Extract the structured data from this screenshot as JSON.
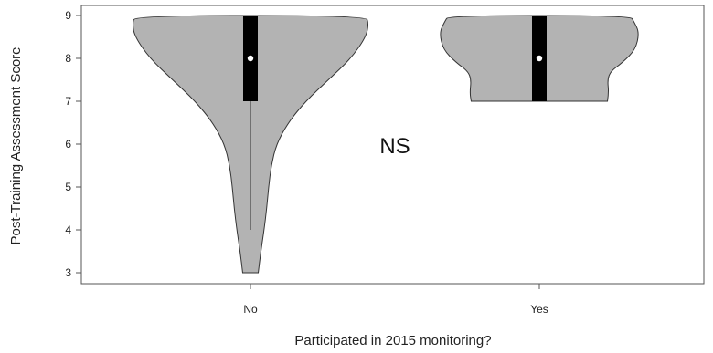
{
  "chart_data": {
    "type": "violin",
    "xlabel": "Participated in 2015 monitoring?",
    "ylabel": "Post-Training Assessment Score",
    "categories": [
      "No",
      "Yes"
    ],
    "ylim": [
      3,
      9
    ],
    "yticks": [
      "3",
      "4",
      "5",
      "6",
      "7",
      "8",
      "9"
    ],
    "annotation": "NS",
    "grid": false,
    "fill_color": "#b3b3b3",
    "box_color": "#000000",
    "median_color": "#ffffff",
    "violins": [
      {
        "category": "No",
        "min": 3,
        "q1": 7,
        "median": 8,
        "q3": 9,
        "max": 9,
        "whisker_low": 4,
        "whisker_high": 9,
        "density": [
          [
            3.0,
            0.12
          ],
          [
            3.5,
            0.16
          ],
          [
            4.0,
            0.21
          ],
          [
            4.5,
            0.25
          ],
          [
            5.0,
            0.28
          ],
          [
            5.5,
            0.32
          ],
          [
            6.0,
            0.4
          ],
          [
            6.5,
            0.58
          ],
          [
            7.0,
            0.85
          ],
          [
            7.5,
            1.2
          ],
          [
            8.0,
            1.55
          ],
          [
            8.5,
            1.78
          ],
          [
            8.8,
            1.82
          ],
          [
            9.0,
            1.78
          ]
        ]
      },
      {
        "category": "Yes",
        "min": 7,
        "q1": 7,
        "median": 8,
        "q3": 9,
        "max": 9,
        "whisker_low": 7,
        "whisker_high": 9,
        "density": [
          [
            7.0,
            1.05
          ],
          [
            7.2,
            1.07
          ],
          [
            7.5,
            1.05
          ],
          [
            7.7,
            1.1
          ],
          [
            7.9,
            1.28
          ],
          [
            8.2,
            1.48
          ],
          [
            8.6,
            1.54
          ],
          [
            8.85,
            1.46
          ],
          [
            9.0,
            1.4
          ]
        ]
      }
    ]
  }
}
